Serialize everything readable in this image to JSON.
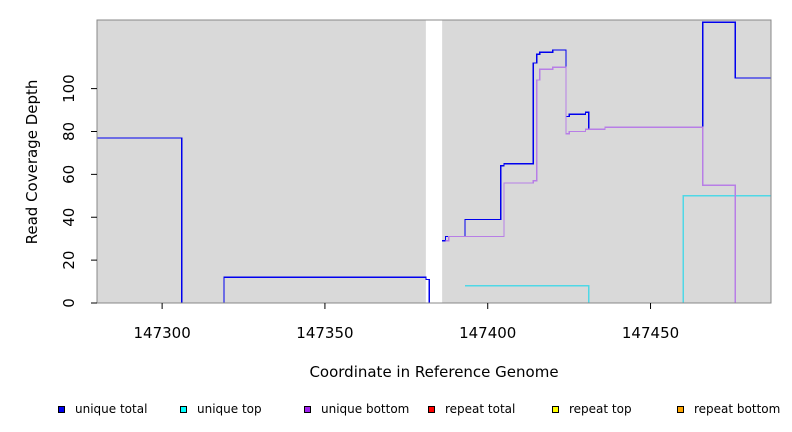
{
  "chart_data": {
    "type": "line",
    "step": true,
    "xlabel": "Coordinate in Reference Genome",
    "ylabel": "Read Coverage Depth",
    "xlim": [
      147280,
      147487
    ],
    "ylim": [
      0,
      132
    ],
    "xticks": [
      147300,
      147350,
      147400,
      147450
    ],
    "yticks": [
      0,
      20,
      40,
      60,
      80,
      100
    ],
    "grid": false,
    "background": "#d9d9d9",
    "gaps": [
      {
        "x": [
          147381,
          147386
        ]
      }
    ],
    "legend_position": "bottom",
    "series": [
      {
        "name": "unique total",
        "color": "#0000ee",
        "legend_color": "#0000ee",
        "x": [
          147280,
          147305,
          147306,
          147318,
          147319,
          147380,
          147381,
          147382
        ],
        "y": [
          77,
          77,
          0,
          0,
          12,
          12,
          11,
          0
        ]
      },
      {
        "name": "unique total",
        "color": "#0000ee",
        "legend_color": "#0000ee",
        "x": [
          147386,
          147387,
          147388,
          147393,
          147404,
          147405,
          147414,
          147415,
          147416,
          147420,
          147424,
          147425,
          147430,
          147431,
          147436,
          147460,
          147466,
          147476,
          147487
        ],
        "y": [
          29,
          31,
          31,
          39,
          64,
          65,
          112,
          116,
          117,
          118,
          87,
          88,
          89,
          81,
          82,
          82,
          131,
          105,
          50
        ]
      },
      {
        "name": "unique top",
        "color": "#4fd8e6",
        "legend_color": "#00ffff",
        "x": [
          147393,
          147431,
          147460,
          147476,
          147487
        ],
        "y": [
          8,
          0,
          50,
          50,
          50
        ]
      },
      {
        "name": "unique bottom",
        "color": "#b87ee6",
        "legend_color": "#a020f0",
        "x": [
          147387,
          147388,
          147404,
          147405,
          147414,
          147415,
          147416,
          147420,
          147424,
          147425,
          147430,
          147436,
          147466,
          147476
        ],
        "y": [
          29,
          31,
          31,
          56,
          57,
          104,
          109,
          110,
          79,
          80,
          81,
          82,
          55,
          0
        ]
      },
      {
        "name": "repeat total",
        "color": "#ee2222",
        "legend_color": "#ff0000",
        "x": [
          147280,
          147487
        ],
        "y": [
          0,
          0
        ]
      },
      {
        "name": "repeat top",
        "color": "#ffff00",
        "legend_color": "#ffff00",
        "x": [
          147280,
          147487
        ],
        "y": [
          0,
          0
        ]
      },
      {
        "name": "repeat bottom",
        "color": "#ffa500",
        "legend_color": "#ffa500",
        "x": [
          147393,
          147431
        ],
        "y": [
          0,
          0
        ]
      }
    ],
    "legend": [
      {
        "name": "unique total",
        "color": "#0000ee"
      },
      {
        "name": "unique top",
        "color": "#00ffff"
      },
      {
        "name": "unique bottom",
        "color": "#a020f0"
      },
      {
        "name": "repeat total",
        "color": "#ff0000"
      },
      {
        "name": "repeat top",
        "color": "#ffff00"
      },
      {
        "name": "repeat bottom",
        "color": "#ffa500"
      }
    ]
  }
}
